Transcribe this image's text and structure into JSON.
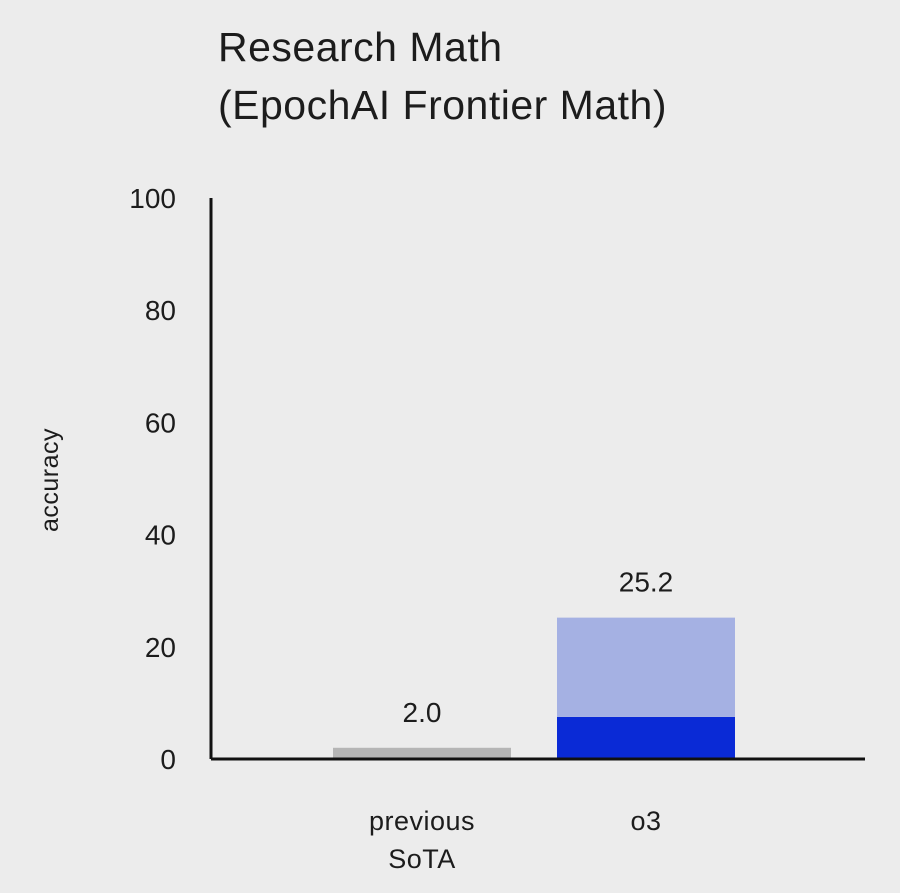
{
  "chart_data": {
    "type": "bar",
    "title": "Research Math",
    "subtitle": "(EpochAI Frontier Math)",
    "xlabel": "",
    "ylabel": "accuracy",
    "ylim": [
      0,
      100
    ],
    "yticks": [
      0,
      20,
      40,
      60,
      80,
      100
    ],
    "ytick_labels": [
      "0",
      "20",
      "40",
      "60",
      "80",
      "100"
    ],
    "categories": [
      {
        "lines": [
          "previous",
          "SoTA"
        ]
      },
      {
        "lines": [
          "o3"
        ]
      }
    ],
    "bars": [
      {
        "category_index": 0,
        "value_label": "2.0",
        "segments": [
          {
            "value": 2.0,
            "color": "#b5b5b5"
          }
        ]
      },
      {
        "category_index": 1,
        "value_label": "25.2",
        "segments": [
          {
            "value": 7.5,
            "color": "#0a2ad6"
          },
          {
            "value": 17.7,
            "color": "#a5b1e3"
          }
        ]
      }
    ],
    "grid": false,
    "legend": "none"
  }
}
